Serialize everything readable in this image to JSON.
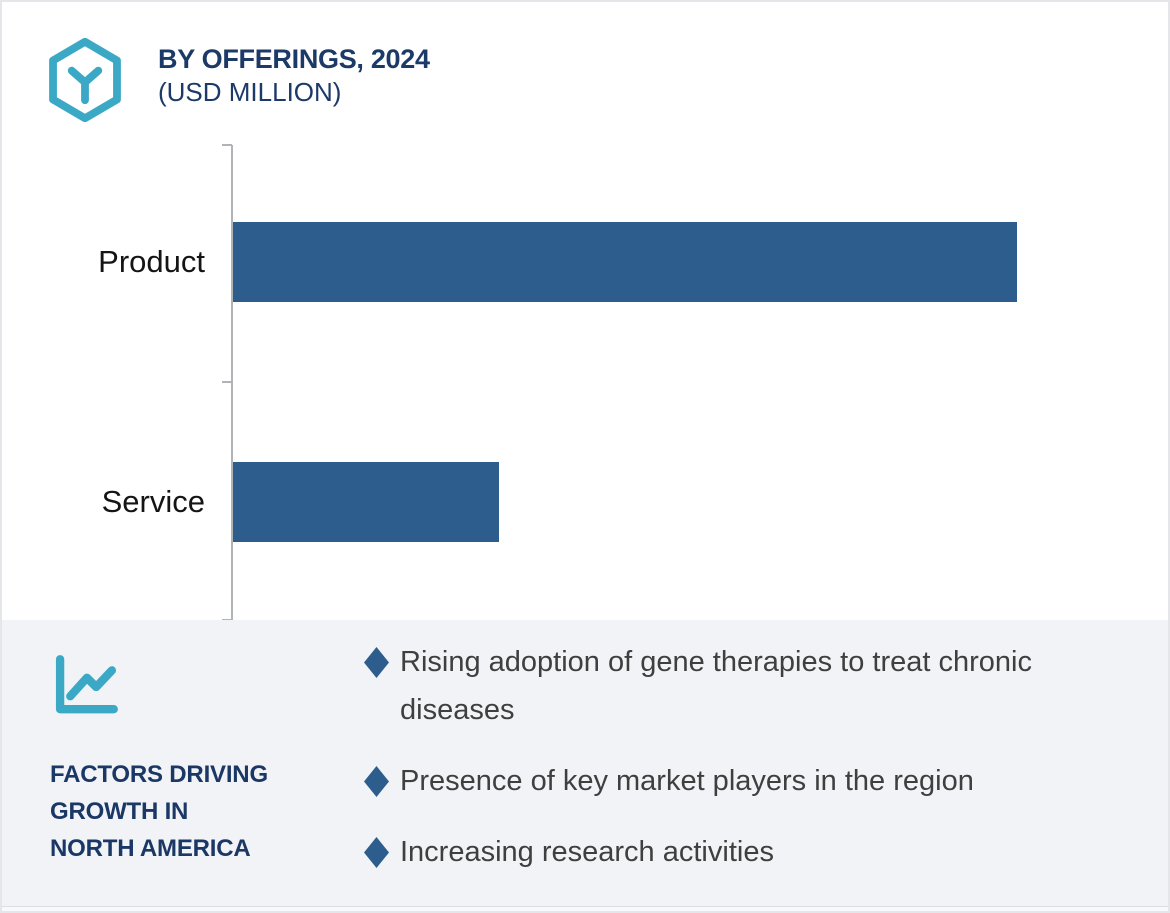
{
  "header": {
    "title_line1": "BY OFFERINGS, 2024",
    "title_line2": "(USD MILLION)"
  },
  "chart_data": {
    "type": "bar",
    "orientation": "horizontal",
    "title": "BY OFFERINGS, 2024 (USD MILLION)",
    "categories": [
      "Product",
      "Service"
    ],
    "values": [
      100,
      34
    ],
    "value_note": "Axis has no numeric tick labels; values are relative lengths (% of Product bar).",
    "xlabel": "",
    "ylabel": "",
    "bar_color": "#2D5D8C",
    "axis_color": "#B1B3B6",
    "grid": false,
    "legend": false
  },
  "factors": {
    "heading": "FACTORS DRIVING\nGROWTH IN\nNORTH AMERICA",
    "items": [
      "Rising adoption of gene therapies to treat chronic diseases",
      "Presence of key market players in the region",
      "Increasing research activities"
    ],
    "bullet_color": "#2D5D8C",
    "heading_color": "#1A3765",
    "panel_bg": "#F1F3F6"
  },
  "colors": {
    "title_navy": "#1C3A68",
    "teal_accent": "#3BA9C6",
    "bar_blue": "#2D5D8C",
    "text_dark": "#3F3F3F"
  }
}
